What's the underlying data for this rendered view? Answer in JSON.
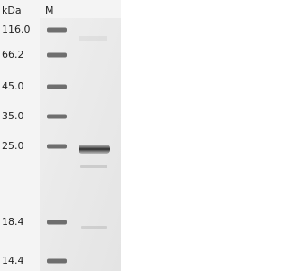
{
  "header": {
    "unit": "kDa",
    "lane": "M"
  },
  "markers": [
    "116.0",
    "66.2",
    "45.0",
    "35.0",
    "25.0",
    "18.4",
    "14.4"
  ]
}
